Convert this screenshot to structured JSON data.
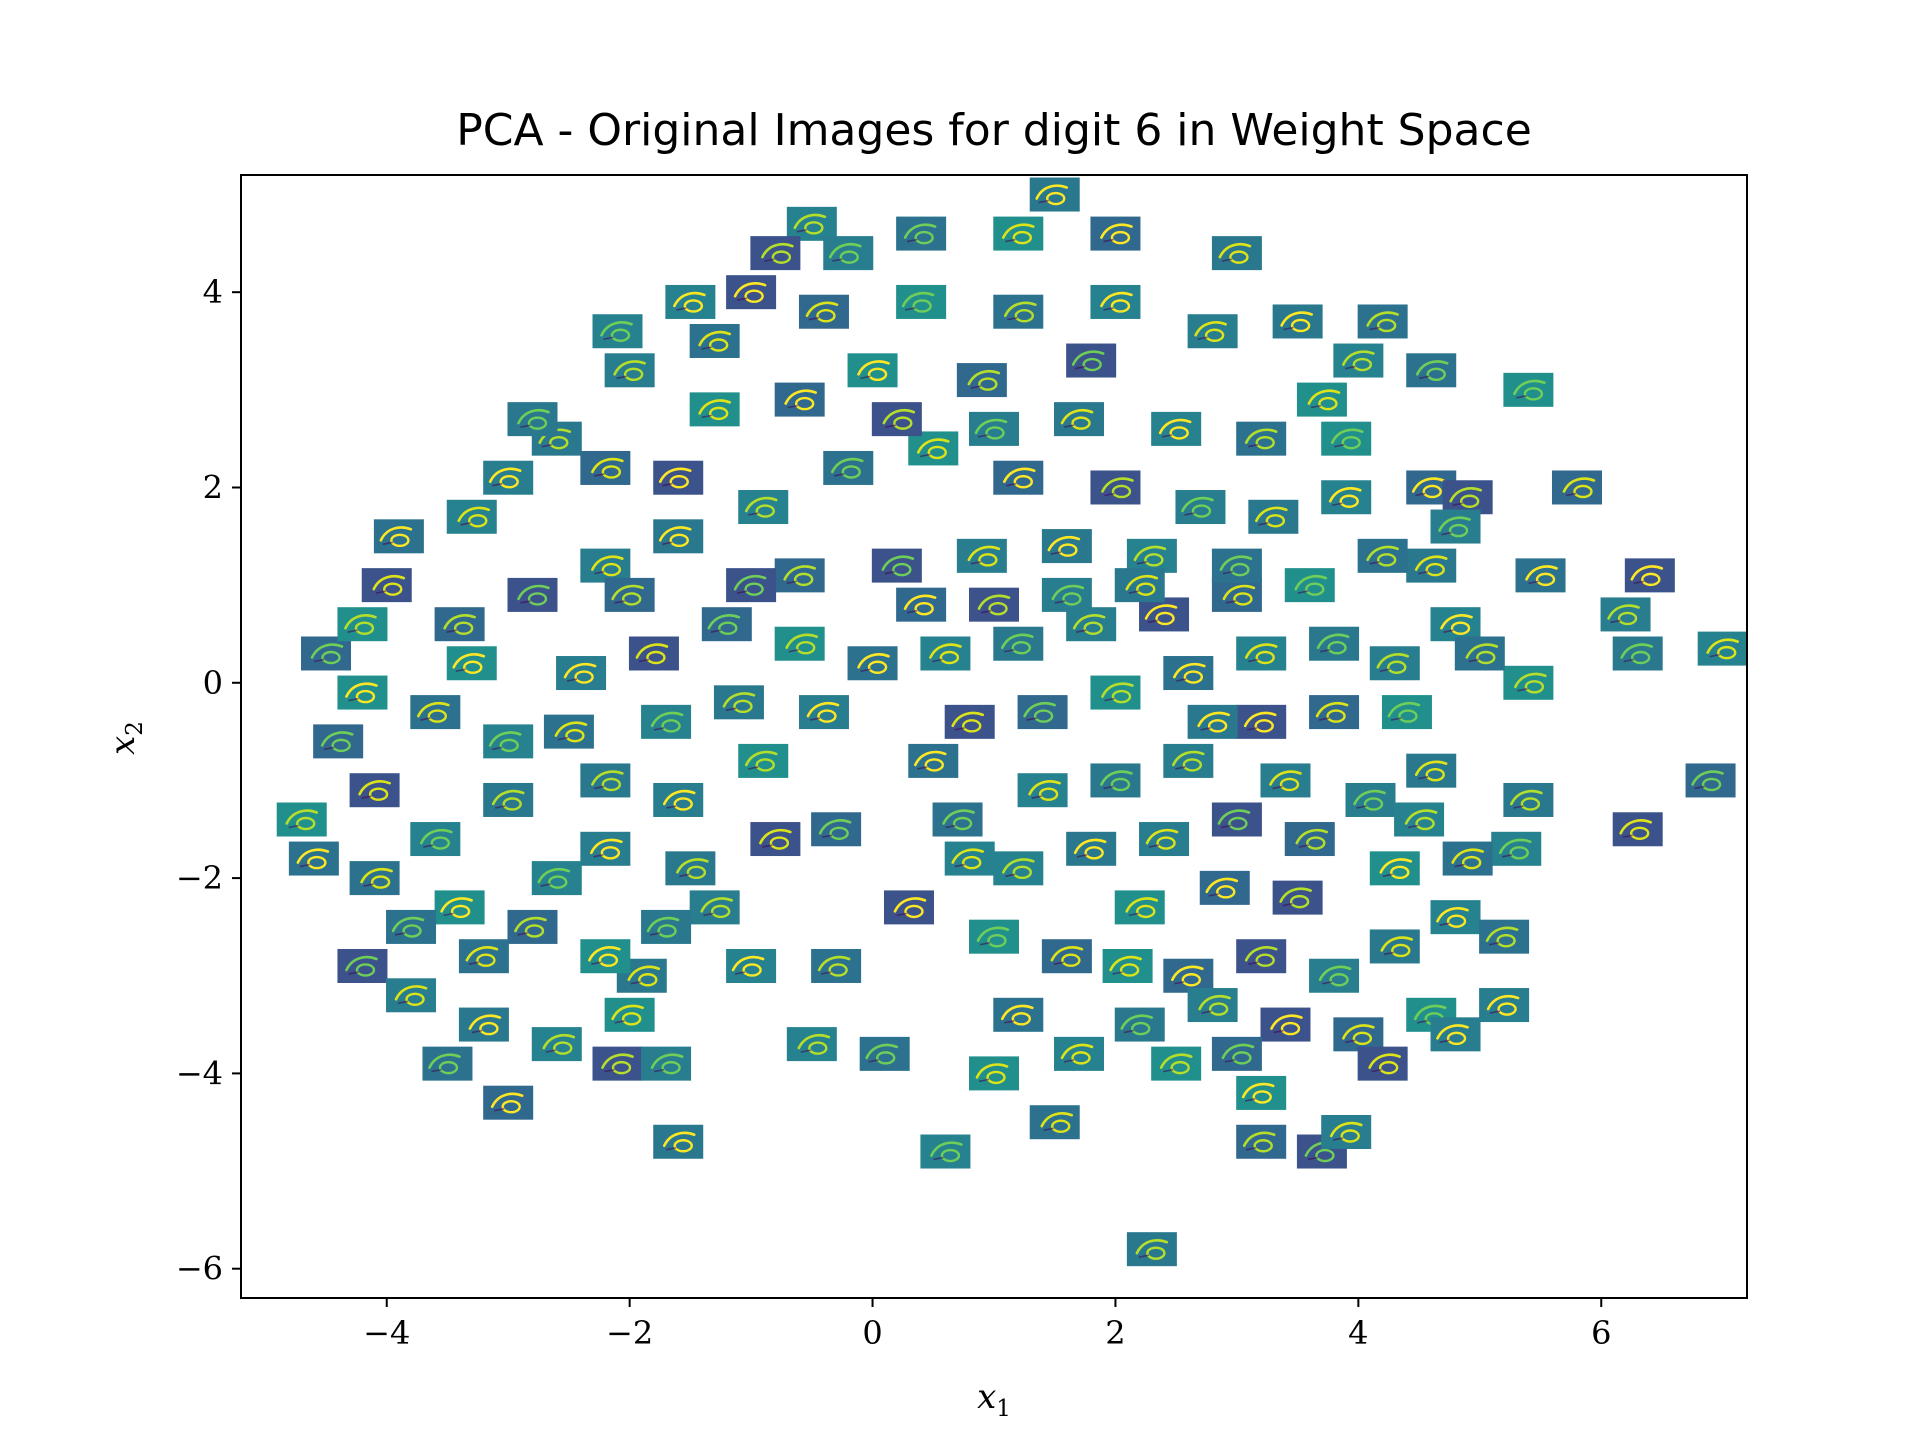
{
  "chart_data": {
    "type": "scatter",
    "title": "PCA - Original Images for digit 6 in Weight Space",
    "xlabel": {
      "main": "x",
      "sub": "1"
    },
    "ylabel": {
      "main": "x",
      "sub": "2"
    },
    "xlim": [
      -5.2,
      7.2
    ],
    "ylim": [
      -6.3,
      5.2
    ],
    "xticks": [
      -4,
      -2,
      0,
      2,
      4,
      6
    ],
    "yticks": [
      -6,
      -4,
      -2,
      0,
      2,
      4
    ],
    "xtick_labels": [
      "−4",
      "−2",
      "0",
      "2",
      "4",
      "6"
    ],
    "ytick_labels": [
      "−6",
      "−4",
      "−2",
      "0",
      "2",
      "4"
    ],
    "grid": false,
    "marker": "thumbnail image of handwritten digit 6",
    "series": [
      {
        "points": [
          [
            1.5,
            5.0
          ],
          [
            -0.5,
            4.7
          ],
          [
            0.4,
            4.6
          ],
          [
            1.2,
            4.6
          ],
          [
            2.0,
            4.6
          ],
          [
            -0.8,
            4.4
          ],
          [
            -0.2,
            4.4
          ],
          [
            3.0,
            4.4
          ],
          [
            -1.5,
            3.9
          ],
          [
            4.2,
            3.7
          ],
          [
            5.4,
            3.0
          ],
          [
            5.8,
            2.0
          ],
          [
            6.4,
            1.1
          ],
          [
            6.2,
            0.7
          ],
          [
            6.3,
            0.3
          ],
          [
            7.0,
            0.35
          ],
          [
            5.5,
            1.1
          ],
          [
            5.4,
            0.0
          ],
          [
            6.9,
            -1.0
          ],
          [
            6.3,
            -1.5
          ],
          [
            5.2,
            -3.3
          ],
          [
            2.3,
            -5.8
          ],
          [
            0.6,
            -4.8
          ],
          [
            1.5,
            -4.5
          ],
          [
            3.2,
            -4.2
          ],
          [
            3.2,
            -4.7
          ],
          [
            3.7,
            -4.8
          ],
          [
            3.9,
            -4.6
          ],
          [
            -1.6,
            -4.7
          ],
          [
            -0.5,
            -3.7
          ],
          [
            0.1,
            -3.8
          ],
          [
            1.0,
            -4.0
          ],
          [
            -3.0,
            -4.3
          ],
          [
            -2.1,
            -3.9
          ],
          [
            -1.7,
            -3.9
          ],
          [
            -1.9,
            -3.0
          ],
          [
            -1.0,
            -2.9
          ],
          [
            -0.3,
            -2.9
          ],
          [
            1.0,
            -2.6
          ],
          [
            1.6,
            -2.8
          ],
          [
            0.3,
            -2.3
          ],
          [
            -1.3,
            -2.3
          ],
          [
            -1.7,
            -2.5
          ],
          [
            0.8,
            -1.8
          ],
          [
            -4.6,
            -1.8
          ],
          [
            -4.7,
            -1.4
          ],
          [
            -4.5,
            0.3
          ],
          [
            -4.0,
            1.0
          ],
          [
            -3.0,
            2.1
          ],
          [
            -2.6,
            2.5
          ],
          [
            -2.1,
            3.6
          ],
          [
            -1.3,
            3.5
          ],
          [
            0.0,
            3.2
          ],
          [
            0.9,
            3.1
          ],
          [
            1.8,
            3.3
          ],
          [
            2.8,
            3.6
          ],
          [
            3.5,
            3.7
          ],
          [
            4.0,
            3.3
          ],
          [
            4.6,
            3.2
          ],
          [
            3.7,
            2.9
          ],
          [
            4.6,
            2.0
          ],
          [
            4.9,
            1.9
          ],
          [
            4.8,
            1.6
          ],
          [
            4.6,
            1.2
          ],
          [
            4.8,
            0.6
          ],
          [
            5.0,
            0.3
          ],
          [
            4.4,
            -0.3
          ],
          [
            3.8,
            -0.3
          ],
          [
            3.2,
            -0.4
          ],
          [
            2.6,
            -0.8
          ],
          [
            2.0,
            -1.0
          ],
          [
            1.4,
            -1.1
          ],
          [
            0.5,
            -0.8
          ],
          [
            -0.9,
            -0.8
          ],
          [
            -0.3,
            -1.5
          ],
          [
            -0.8,
            -1.6
          ],
          [
            -1.6,
            -1.2
          ],
          [
            -2.2,
            -1.0
          ],
          [
            -3.0,
            -0.6
          ],
          [
            -3.6,
            -0.3
          ],
          [
            -4.2,
            -0.1
          ],
          [
            -3.4,
            0.6
          ],
          [
            -2.8,
            0.9
          ],
          [
            -2.2,
            1.2
          ],
          [
            -1.6,
            1.5
          ],
          [
            -0.9,
            1.8
          ],
          [
            -0.2,
            2.2
          ],
          [
            0.5,
            2.4
          ],
          [
            1.2,
            2.1
          ],
          [
            2.0,
            2.0
          ],
          [
            2.7,
            1.8
          ],
          [
            3.3,
            1.7
          ],
          [
            3.9,
            1.9
          ],
          [
            4.2,
            1.3
          ],
          [
            3.6,
            1.0
          ],
          [
            3.0,
            0.9
          ],
          [
            2.4,
            0.7
          ],
          [
            1.8,
            0.6
          ],
          [
            1.2,
            0.4
          ],
          [
            0.6,
            0.3
          ],
          [
            0.0,
            0.2
          ],
          [
            -0.6,
            0.4
          ],
          [
            -1.2,
            0.6
          ],
          [
            -1.8,
            0.3
          ],
          [
            -2.4,
            0.1
          ],
          [
            -3.0,
            -1.2
          ],
          [
            -3.6,
            -1.6
          ],
          [
            -4.1,
            -2.0
          ],
          [
            -3.4,
            -2.3
          ],
          [
            -2.8,
            -2.5
          ],
          [
            -4.2,
            -2.9
          ],
          [
            -3.8,
            -3.2
          ],
          [
            -3.2,
            -3.5
          ],
          [
            -2.6,
            -3.7
          ],
          [
            -3.5,
            -3.9
          ],
          [
            2.1,
            -2.9
          ],
          [
            2.6,
            -3.0
          ],
          [
            3.2,
            -2.8
          ],
          [
            3.8,
            -3.0
          ],
          [
            4.3,
            -2.7
          ],
          [
            4.8,
            -2.4
          ],
          [
            5.2,
            -2.6
          ],
          [
            4.6,
            -3.4
          ],
          [
            4.0,
            -3.6
          ],
          [
            3.4,
            -3.5
          ],
          [
            2.8,
            -3.3
          ],
          [
            2.2,
            -3.5
          ],
          [
            1.7,
            -3.8
          ],
          [
            1.2,
            -3.4
          ],
          [
            2.5,
            -3.9
          ],
          [
            3.0,
            -3.8
          ],
          [
            4.2,
            -3.9
          ],
          [
            4.8,
            -3.6
          ],
          [
            5.4,
            -1.2
          ],
          [
            5.3,
            -1.7
          ],
          [
            4.9,
            -1.8
          ],
          [
            4.3,
            -1.9
          ],
          [
            3.6,
            -1.6
          ],
          [
            3.0,
            -1.4
          ],
          [
            2.4,
            -1.6
          ],
          [
            1.8,
            -1.7
          ],
          [
            1.2,
            -1.9
          ],
          [
            0.7,
            -1.4
          ],
          [
            2.2,
            -2.3
          ],
          [
            2.9,
            -2.1
          ],
          [
            3.5,
            -2.2
          ],
          [
            4.1,
            -1.2
          ],
          [
            4.6,
            -0.9
          ],
          [
            2.0,
            3.9
          ],
          [
            1.2,
            3.8
          ],
          [
            0.4,
            3.9
          ],
          [
            -0.4,
            3.8
          ],
          [
            -1.0,
            4.0
          ],
          [
            -2.0,
            3.2
          ],
          [
            -2.8,
            2.7
          ],
          [
            -3.3,
            1.7
          ],
          [
            -3.9,
            1.5
          ],
          [
            -4.2,
            0.6
          ],
          [
            -4.4,
            -0.6
          ],
          [
            -4.1,
            -1.1
          ],
          [
            -2.2,
            -1.7
          ],
          [
            -1.5,
            -1.9
          ],
          [
            -2.6,
            -2.0
          ],
          [
            -3.2,
            -2.8
          ],
          [
            -2.2,
            -2.8
          ],
          [
            -0.6,
            1.1
          ],
          [
            0.2,
            1.2
          ],
          [
            0.9,
            1.3
          ],
          [
            1.6,
            1.4
          ],
          [
            2.3,
            1.3
          ],
          [
            3.0,
            1.2
          ],
          [
            -1.3,
            2.8
          ],
          [
            -0.6,
            2.9
          ],
          [
            0.2,
            2.7
          ],
          [
            1.0,
            2.6
          ],
          [
            1.7,
            2.7
          ],
          [
            2.5,
            2.6
          ],
          [
            3.2,
            2.5
          ],
          [
            3.9,
            2.5
          ],
          [
            -2.2,
            2.2
          ],
          [
            -1.6,
            2.1
          ],
          [
            4.3,
            0.2
          ],
          [
            3.8,
            0.4
          ],
          [
            3.2,
            0.3
          ],
          [
            2.6,
            0.1
          ],
          [
            2.0,
            -0.1
          ],
          [
            1.4,
            -0.3
          ],
          [
            0.8,
            -0.4
          ],
          [
            -0.4,
            -0.3
          ],
          [
            -1.1,
            -0.2
          ],
          [
            -1.7,
            -0.4
          ],
          [
            -2.5,
            -0.5
          ],
          [
            -3.3,
            0.2
          ],
          [
            -2.0,
            0.9
          ],
          [
            -1.0,
            1.0
          ],
          [
            3.4,
            -1.0
          ],
          [
            2.8,
            -0.4
          ],
          [
            4.5,
            -1.4
          ],
          [
            -3.8,
            -2.5
          ],
          [
            -2.0,
            -3.4
          ],
          [
            0.4,
            0.8
          ],
          [
            1.0,
            0.8
          ],
          [
            1.6,
            0.9
          ],
          [
            2.2,
            1.0
          ]
        ]
      }
    ]
  }
}
